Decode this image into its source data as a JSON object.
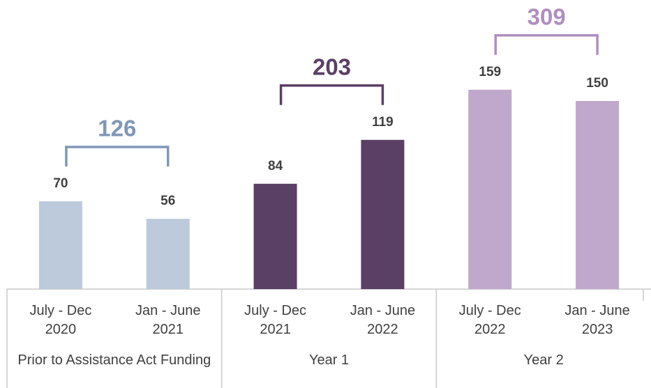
{
  "chart_data": {
    "type": "bar",
    "categories": [
      "July - Dec 2020",
      "Jan - June 2021",
      "July - Dec 2021",
      "Jan - June 2022",
      "July - Dec 2022",
      "Jan - June 2023"
    ],
    "values": [
      70,
      56,
      84,
      119,
      159,
      150
    ],
    "colors": [
      "#bccadb",
      "#bccadb",
      "#5a4064",
      "#5a4064",
      "#bfa8cb",
      "#bfa8cb"
    ],
    "ylim": [
      0,
      200
    ],
    "groups": [
      {
        "label": "Prior to Assistance Act Funding",
        "total": 126,
        "color": "#7f97b8"
      },
      {
        "label": "Year 1",
        "total": 203,
        "color": "#5a3f65"
      },
      {
        "label": "Year 2",
        "total": 309,
        "color": "#b08ec0"
      }
    ]
  }
}
